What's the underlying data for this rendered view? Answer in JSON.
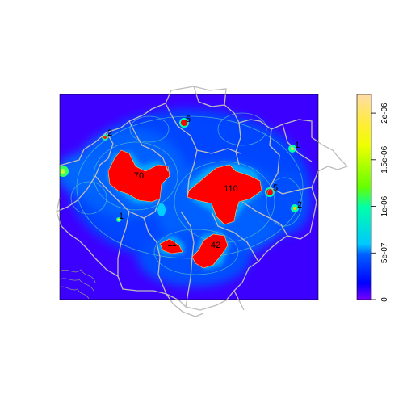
{
  "chart_data": {
    "type": "heatmap",
    "title": "",
    "xlabel": "",
    "ylabel": "",
    "colorbar": {
      "ticks": [
        "0",
        "5e-07",
        "1e-06",
        "1.5e-06",
        "2e-06"
      ],
      "tick_values": [
        0,
        5e-07,
        1e-06,
        1.5e-06,
        2e-06
      ],
      "range": [
        0,
        2.2e-06
      ],
      "palette": [
        "#0000ff",
        "#00a0ff",
        "#00ff66",
        "#ffff00",
        "#ffd9a0"
      ]
    },
    "hotspot_labels": [
      "2",
      "5",
      "1",
      "70",
      "110",
      "5",
      "2",
      "1",
      "11",
      "42"
    ],
    "grid": false,
    "legend": "right"
  },
  "colors": {
    "background_low": "#3a00ff",
    "hotspot": "#ff0000",
    "boundary": "#b8b8b8",
    "contour": "#55b8c8"
  }
}
